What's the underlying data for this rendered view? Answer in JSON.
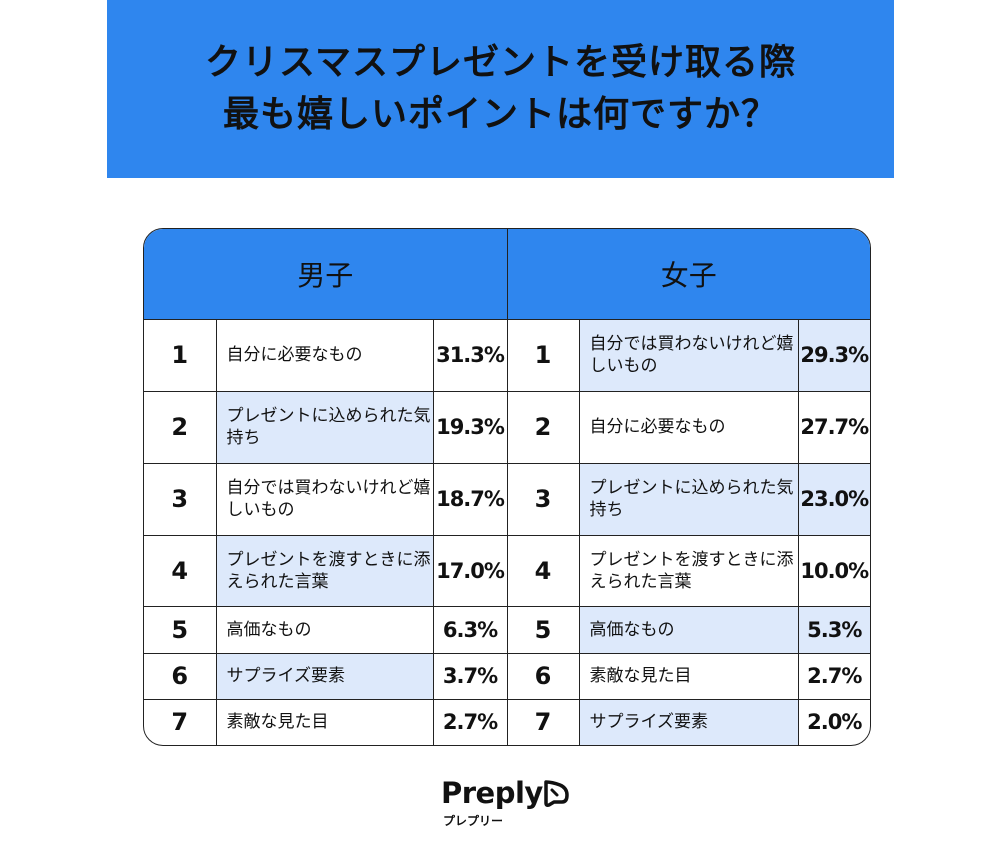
{
  "title": {
    "line1": "クリスマスプレゼントを受け取る際",
    "line2": "最も嬉しいポイントは何ですか？"
  },
  "colors": {
    "accent": "#2f86ee",
    "highlight": "#dde9fb"
  },
  "chart_data": {
    "type": "table",
    "groups": [
      {
        "name": "男子",
        "rows": [
          {
            "rank": "1",
            "label": "自分に必要なもの",
            "value": "31.3%"
          },
          {
            "rank": "2",
            "label": "プレゼントに込められた気持ち",
            "value": "19.3%"
          },
          {
            "rank": "3",
            "label": "自分では買わないけれど嬉しいもの",
            "value": "18.7%"
          },
          {
            "rank": "4",
            "label": "プレゼントを渡すときに添えられた言葉",
            "value": "17.0%"
          },
          {
            "rank": "5",
            "label": "高価なもの",
            "value": "6.3%"
          },
          {
            "rank": "6",
            "label": "サプライズ要素",
            "value": "3.7%"
          },
          {
            "rank": "7",
            "label": "素敵な見た目",
            "value": "2.7%"
          }
        ]
      },
      {
        "name": "女子",
        "rows": [
          {
            "rank": "1",
            "label": "自分では買わないけれど嬉しいもの",
            "value": "29.3%"
          },
          {
            "rank": "2",
            "label": "自分に必要なもの",
            "value": "27.7%"
          },
          {
            "rank": "3",
            "label": "プレゼントに込められた気持ち",
            "value": "23.0%"
          },
          {
            "rank": "4",
            "label": "プレゼントを渡すときに添えられた言葉",
            "value": "10.0%"
          },
          {
            "rank": "5",
            "label": "高価なもの",
            "value": "5.3%"
          },
          {
            "rank": "6",
            "label": "素敵な見た目",
            "value": "2.7%"
          },
          {
            "rank": "7",
            "label": "サプライズ要素",
            "value": "2.0%"
          }
        ]
      }
    ]
  },
  "logo": {
    "name": "Preply",
    "kana": "プレプリー",
    "icon": "preply-logo-icon"
  }
}
